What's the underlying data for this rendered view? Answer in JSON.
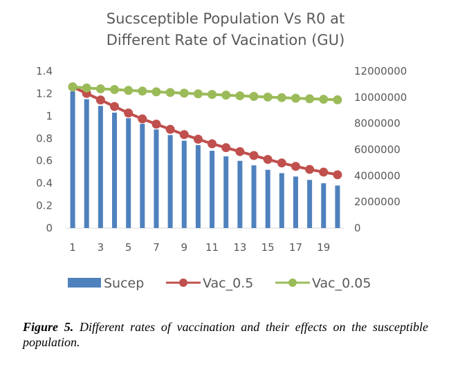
{
  "chart_data": {
    "type": "bar",
    "title": [
      "Sucsceptible Population Vs R0 at",
      "Different Rate of Vacination (GU)"
    ],
    "xlabel": "",
    "ylabel": "",
    "x": [
      1,
      2,
      3,
      4,
      5,
      6,
      7,
      8,
      9,
      10,
      11,
      12,
      13,
      14,
      15,
      16,
      17,
      18,
      19,
      20
    ],
    "x_tick_labels": [
      "1",
      "3",
      "5",
      "7",
      "9",
      "11",
      "13",
      "15",
      "17",
      "19"
    ],
    "y_left": {
      "ylim": [
        0,
        1.4
      ],
      "ticks": [
        "0",
        "0.2",
        "0.4",
        "0.6",
        "0.8",
        "1",
        "1.2",
        "1.4"
      ]
    },
    "y_right": {
      "ylim": [
        0,
        12000000
      ],
      "ticks": [
        "0",
        "2000000",
        "4000000",
        "6000000",
        "8000000",
        "10000000",
        "12000000"
      ]
    },
    "grid": false,
    "legend_position": "bottom",
    "series": [
      {
        "name": "Sucep",
        "type": "bar",
        "axis": "left",
        "color": "#4f81bd",
        "values": [
          1.22,
          1.15,
          1.09,
          1.03,
          0.98,
          0.93,
          0.88,
          0.83,
          0.78,
          0.74,
          0.69,
          0.64,
          0.6,
          0.56,
          0.52,
          0.49,
          0.46,
          0.43,
          0.4,
          0.38
        ]
      },
      {
        "name": "Vac_0.5",
        "type": "line",
        "axis": "right",
        "color": "#c0504d",
        "values": [
          10800000,
          10300000,
          9800000,
          9300000,
          8800000,
          8350000,
          7950000,
          7550000,
          7150000,
          6800000,
          6450000,
          6150000,
          5850000,
          5550000,
          5250000,
          4980000,
          4720000,
          4490000,
          4280000,
          4080000
        ]
      },
      {
        "name": "Vac_0.05",
        "type": "line",
        "axis": "right",
        "color": "#9bbb59",
        "values": [
          10800000,
          10720000,
          10650000,
          10600000,
          10530000,
          10480000,
          10420000,
          10370000,
          10320000,
          10270000,
          10220000,
          10170000,
          10120000,
          10070000,
          10020000,
          9980000,
          9930000,
          9890000,
          9850000,
          9810000
        ]
      }
    ]
  },
  "caption": {
    "label": "Figure 5.",
    "text": " Different rates of vaccination and their effects on the susceptible population."
  }
}
